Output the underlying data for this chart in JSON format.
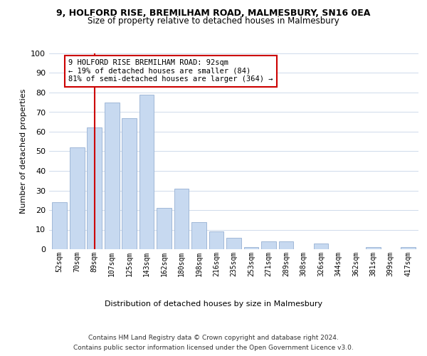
{
  "title1": "9, HOLFORD RISE, BREMILHAM ROAD, MALMESBURY, SN16 0EA",
  "title2": "Size of property relative to detached houses in Malmesbury",
  "xlabel": "Distribution of detached houses by size in Malmesbury",
  "ylabel": "Number of detached properties",
  "bin_labels": [
    "52sqm",
    "70sqm",
    "89sqm",
    "107sqm",
    "125sqm",
    "143sqm",
    "162sqm",
    "180sqm",
    "198sqm",
    "216sqm",
    "235sqm",
    "253sqm",
    "271sqm",
    "289sqm",
    "308sqm",
    "326sqm",
    "344sqm",
    "362sqm",
    "381sqm",
    "399sqm",
    "417sqm"
  ],
  "bar_values": [
    24,
    52,
    62,
    75,
    67,
    79,
    21,
    31,
    14,
    9,
    6,
    1,
    4,
    4,
    0,
    3,
    0,
    0,
    1,
    0,
    1
  ],
  "bar_color": "#c7d9f0",
  "bar_edge_color": "#a0b8d8",
  "vline_x_index": 2,
  "vline_color": "#cc0000",
  "ylim": [
    0,
    100
  ],
  "annotation_lines": [
    "9 HOLFORD RISE BREMILHAM ROAD: 92sqm",
    "← 19% of detached houses are smaller (84)",
    "81% of semi-detached houses are larger (364) →"
  ],
  "footer_line1": "Contains HM Land Registry data © Crown copyright and database right 2024.",
  "footer_line2": "Contains public sector information licensed under the Open Government Licence v3.0.",
  "background_color": "#ffffff",
  "plot_bg_color": "#ffffff"
}
